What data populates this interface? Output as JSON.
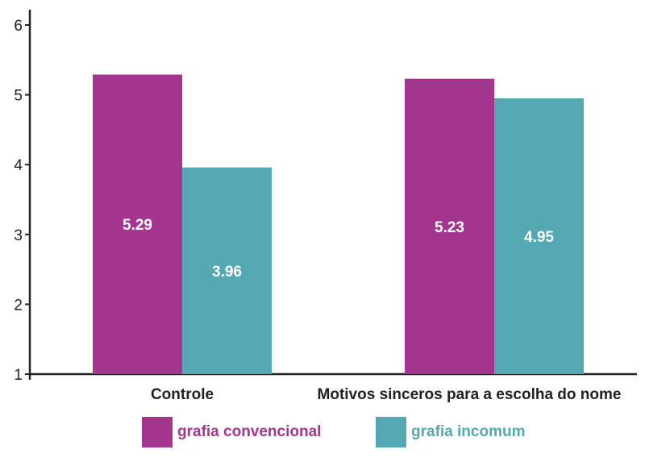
{
  "chart_data": {
    "type": "bar",
    "categories": [
      "Controle",
      "Motivos sinceros para a escolha do nome"
    ],
    "series": [
      {
        "name": "grafia convencional",
        "values": [
          5.29,
          5.23
        ],
        "color": "#a43690"
      },
      {
        "name": "grafia incomum",
        "values": [
          3.96,
          4.95
        ],
        "color": "#53a8b1"
      }
    ],
    "data_labels": [
      [
        "5.29",
        "5.23"
      ],
      [
        "3.96",
        "4.95"
      ]
    ],
    "yticks": [
      "1",
      "2",
      "3",
      "4",
      "5",
      "6"
    ],
    "ylim": [
      1,
      6
    ],
    "grid": false,
    "legend_position": "bottom"
  }
}
